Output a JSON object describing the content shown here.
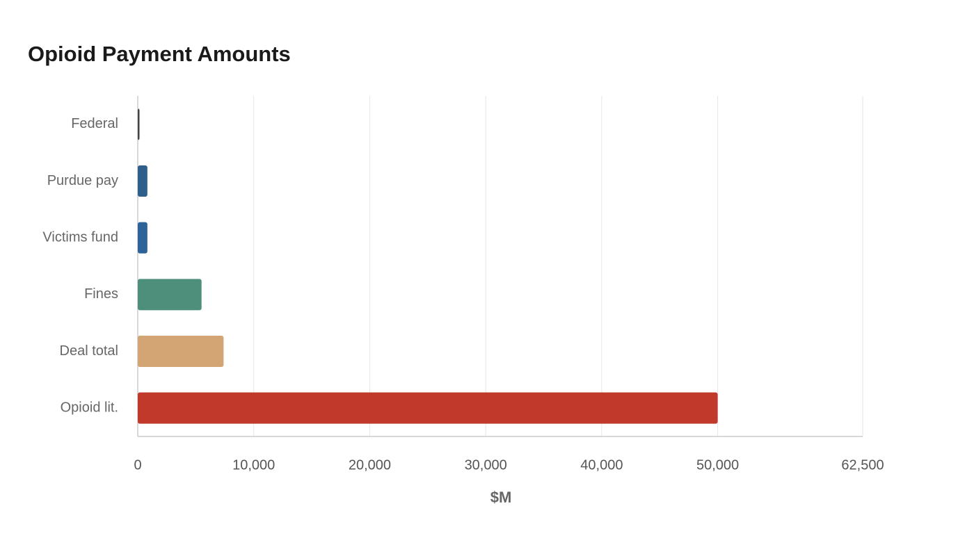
{
  "chart_data": {
    "type": "bar",
    "orientation": "horizontal",
    "title": "Opioid Payment Amounts",
    "x_label": "$M",
    "categories": [
      "Federal",
      "Purdue pay",
      "Victims fund",
      "Fines",
      "Deal total",
      "Opioid lit."
    ],
    "values": [
      150,
      830,
      830,
      5500,
      7400,
      50000
    ],
    "colors": [
      "#444444",
      "#2e5f8a",
      "#2e6399",
      "#4e8f7c",
      "#d4a574",
      "#c0392b"
    ],
    "xlim": [
      0,
      62500
    ],
    "xticks": [
      0,
      {
        "value": 10000,
        "label": "10,000"
      },
      {
        "value": 20000,
        "label": "20,000"
      },
      {
        "value": 30000,
        "label": "30,000"
      },
      {
        "value": 40000,
        "label": "40,000"
      },
      {
        "value": 50000,
        "label": "50,000"
      },
      {
        "value": 62500,
        "label": "62,500"
      }
    ],
    "grid": true
  }
}
